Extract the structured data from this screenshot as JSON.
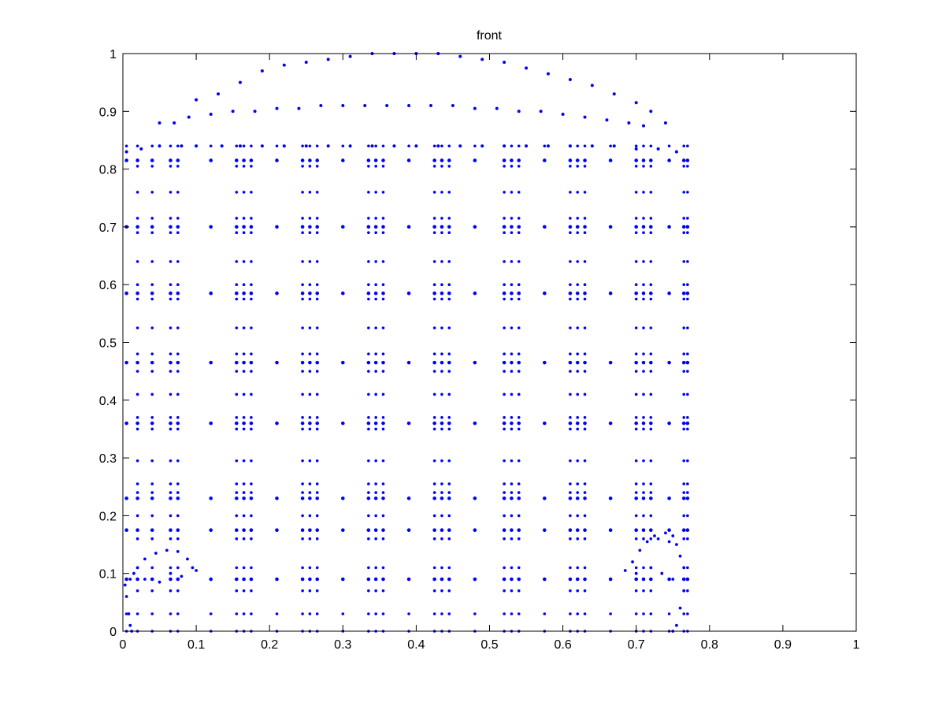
{
  "chart_data": {
    "type": "scatter",
    "title": "front",
    "xlabel": "",
    "ylabel": "",
    "xlim": [
      0,
      1
    ],
    "ylim": [
      0,
      1
    ],
    "grid": false,
    "legend": "none",
    "marker_color": "#0000ff",
    "x_ticks": [
      "0",
      "0.1",
      "0.2",
      "0.3",
      "0.4",
      "0.5",
      "0.6",
      "0.7",
      "0.8",
      "0.9",
      "1"
    ],
    "y_ticks": [
      "0",
      "0.1",
      "0.2",
      "0.3",
      "0.4",
      "0.5",
      "0.6",
      "0.7",
      "0.8",
      "0.9",
      "1"
    ],
    "grid_columns": [
      0.005,
      0.02,
      0.04,
      0.065,
      0.075,
      0.12,
      0.155,
      0.165,
      0.175,
      0.21,
      0.245,
      0.255,
      0.265,
      0.3,
      0.335,
      0.345,
      0.355,
      0.39,
      0.425,
      0.435,
      0.445,
      0.48,
      0.52,
      0.53,
      0.54,
      0.575,
      0.61,
      0.62,
      0.63,
      0.665,
      0.7,
      0.71,
      0.72,
      0.745,
      0.765,
      0.77
    ],
    "grid_rows": [
      0.0,
      0.03,
      0.07,
      0.09,
      0.11,
      0.16,
      0.175,
      0.2,
      0.23,
      0.24,
      0.255,
      0.295,
      0.35,
      0.36,
      0.37,
      0.41,
      0.45,
      0.465,
      0.48,
      0.525,
      0.575,
      0.585,
      0.6,
      0.64,
      0.69,
      0.7,
      0.715,
      0.76,
      0.805,
      0.815,
      0.84
    ],
    "dense_rows": [
      0.09,
      0.175,
      0.23,
      0.36,
      0.465,
      0.585,
      0.7,
      0.815
    ],
    "sparse_columns": [
      0.005,
      0.12,
      0.21,
      0.3,
      0.39,
      0.48,
      0.575,
      0.665,
      0.745
    ],
    "arc_outer": [
      [
        0.05,
        0.88
      ],
      [
        0.1,
        0.92
      ],
      [
        0.13,
        0.93
      ],
      [
        0.16,
        0.95
      ],
      [
        0.19,
        0.97
      ],
      [
        0.22,
        0.98
      ],
      [
        0.25,
        0.985
      ],
      [
        0.28,
        0.99
      ],
      [
        0.31,
        0.995
      ],
      [
        0.34,
        1.0
      ],
      [
        0.37,
        1.0
      ],
      [
        0.4,
        1.0
      ],
      [
        0.43,
        1.0
      ],
      [
        0.46,
        0.995
      ],
      [
        0.49,
        0.99
      ],
      [
        0.52,
        0.985
      ],
      [
        0.55,
        0.975
      ],
      [
        0.58,
        0.965
      ],
      [
        0.61,
        0.955
      ],
      [
        0.64,
        0.945
      ],
      [
        0.67,
        0.93
      ],
      [
        0.7,
        0.915
      ],
      [
        0.72,
        0.9
      ],
      [
        0.74,
        0.88
      ]
    ],
    "arc_inner": [
      [
        0.07,
        0.88
      ],
      [
        0.09,
        0.89
      ],
      [
        0.12,
        0.895
      ],
      [
        0.15,
        0.9
      ],
      [
        0.18,
        0.9
      ],
      [
        0.21,
        0.905
      ],
      [
        0.24,
        0.905
      ],
      [
        0.27,
        0.91
      ],
      [
        0.3,
        0.91
      ],
      [
        0.33,
        0.91
      ],
      [
        0.36,
        0.91
      ],
      [
        0.39,
        0.91
      ],
      [
        0.42,
        0.91
      ],
      [
        0.45,
        0.91
      ],
      [
        0.48,
        0.905
      ],
      [
        0.51,
        0.905
      ],
      [
        0.54,
        0.9
      ],
      [
        0.57,
        0.9
      ],
      [
        0.6,
        0.895
      ],
      [
        0.63,
        0.89
      ],
      [
        0.66,
        0.885
      ],
      [
        0.69,
        0.88
      ],
      [
        0.71,
        0.875
      ]
    ],
    "top_row": [
      [
        0.005,
        0.83
      ],
      [
        0.025,
        0.835
      ],
      [
        0.05,
        0.84
      ],
      [
        0.08,
        0.84
      ],
      [
        0.1,
        0.84
      ],
      [
        0.135,
        0.84
      ],
      [
        0.16,
        0.84
      ],
      [
        0.19,
        0.84
      ],
      [
        0.22,
        0.84
      ],
      [
        0.25,
        0.84
      ],
      [
        0.28,
        0.84
      ],
      [
        0.31,
        0.84
      ],
      [
        0.34,
        0.84
      ],
      [
        0.37,
        0.84
      ],
      [
        0.4,
        0.84
      ],
      [
        0.43,
        0.84
      ],
      [
        0.46,
        0.84
      ],
      [
        0.49,
        0.84
      ],
      [
        0.52,
        0.84
      ],
      [
        0.55,
        0.84
      ],
      [
        0.58,
        0.84
      ],
      [
        0.61,
        0.84
      ],
      [
        0.64,
        0.84
      ],
      [
        0.67,
        0.84
      ],
      [
        0.7,
        0.835
      ],
      [
        0.73,
        0.835
      ],
      [
        0.755,
        0.83
      ]
    ],
    "left_wheel_arch": [
      [
        0.01,
        0.09
      ],
      [
        0.02,
        0.11
      ],
      [
        0.03,
        0.125
      ],
      [
        0.045,
        0.135
      ],
      [
        0.06,
        0.14
      ],
      [
        0.075,
        0.138
      ],
      [
        0.088,
        0.125
      ],
      [
        0.095,
        0.11
      ],
      [
        0.1,
        0.105
      ],
      [
        0.015,
        0.1
      ],
      [
        0.03,
        0.09
      ],
      [
        0.05,
        0.085
      ],
      [
        0.065,
        0.1
      ],
      [
        0.08,
        0.095
      ],
      [
        0.005,
        0.06
      ],
      [
        0.008,
        0.03
      ],
      [
        0.01,
        0.01
      ],
      [
        0.012,
        0.0
      ],
      [
        0.003,
        0.08
      ]
    ],
    "right_wheel_arch": [
      [
        0.685,
        0.105
      ],
      [
        0.695,
        0.12
      ],
      [
        0.705,
        0.14
      ],
      [
        0.715,
        0.155
      ],
      [
        0.725,
        0.165
      ],
      [
        0.74,
        0.17
      ],
      [
        0.75,
        0.165
      ],
      [
        0.755,
        0.15
      ],
      [
        0.76,
        0.13
      ],
      [
        0.765,
        0.11
      ],
      [
        0.77,
        0.09
      ],
      [
        0.7,
        0.1
      ],
      [
        0.72,
        0.11
      ],
      [
        0.735,
        0.1
      ],
      [
        0.75,
        0.09
      ],
      [
        0.73,
        0.16
      ],
      [
        0.745,
        0.155
      ],
      [
        0.765,
        0.07
      ],
      [
        0.76,
        0.04
      ],
      [
        0.755,
        0.01
      ],
      [
        0.75,
        0.0
      ]
    ]
  }
}
